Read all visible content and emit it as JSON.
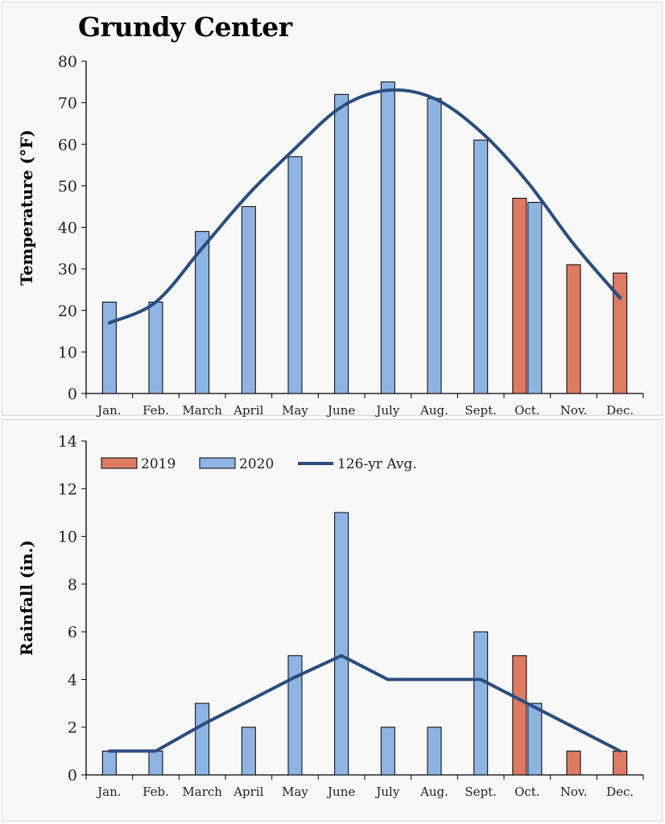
{
  "title": "Grundy Center",
  "colors": {
    "y2019": "#dd7b64",
    "y2020": "#8eb4e3",
    "avg": "#2a4d7e"
  },
  "chart_data": [
    {
      "type": "bar",
      "ylabel": "Temperature (°F)",
      "ylim": [
        0,
        80
      ],
      "yticks": [
        0,
        10,
        20,
        30,
        40,
        50,
        60,
        70,
        80
      ],
      "categories": [
        "Jan.",
        "Feb.",
        "March",
        "April",
        "May",
        "June",
        "July",
        "Aug.",
        "Sept.",
        "Oct.",
        "Nov.",
        "Dec."
      ],
      "series": [
        {
          "name": "2019",
          "kind": "bar",
          "values": [
            null,
            null,
            null,
            null,
            null,
            null,
            null,
            null,
            null,
            47,
            31,
            29
          ]
        },
        {
          "name": "2020",
          "kind": "bar",
          "values": [
            22,
            22,
            39,
            45,
            57,
            72,
            75,
            71,
            61,
            46,
            null,
            null
          ]
        },
        {
          "name": "126-yr Avg.",
          "kind": "line",
          "values": [
            17,
            22,
            35,
            48,
            59,
            69,
            73,
            71,
            63,
            51,
            36,
            23
          ]
        }
      ]
    },
    {
      "type": "bar",
      "ylabel": "Rainfall (in.)",
      "ylim": [
        0,
        14
      ],
      "yticks": [
        0,
        2,
        4,
        6,
        8,
        10,
        12,
        14
      ],
      "categories": [
        "Jan.",
        "Feb.",
        "March",
        "April",
        "May",
        "June",
        "July",
        "Aug.",
        "Sept.",
        "Oct.",
        "Nov.",
        "Dec."
      ],
      "series": [
        {
          "name": "2019",
          "kind": "bar",
          "values": [
            null,
            null,
            null,
            null,
            null,
            null,
            null,
            null,
            null,
            5,
            1,
            1
          ]
        },
        {
          "name": "2020",
          "kind": "bar",
          "values": [
            1,
            1,
            3,
            2,
            5,
            11,
            2,
            2,
            6,
            3,
            null,
            null
          ]
        },
        {
          "name": "126-yr Avg.",
          "kind": "line",
          "values": [
            1,
            1,
            2.1,
            3.1,
            4.1,
            5,
            4,
            4,
            4,
            3,
            2,
            1
          ]
        }
      ],
      "legend": [
        "2019",
        "2020",
        "126-yr Avg."
      ],
      "legend_placement": "top-left"
    }
  ]
}
